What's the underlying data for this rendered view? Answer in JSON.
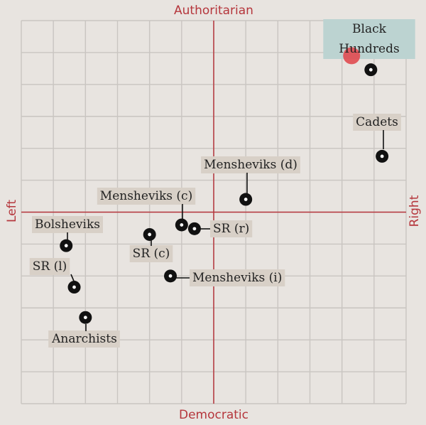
{
  "chart_data": {
    "type": "scatter",
    "title": "",
    "axes": {
      "top": "Authoritarian",
      "bottom": "Democratic",
      "left": "Left",
      "right": "Right"
    },
    "xlim": [
      -6,
      6
    ],
    "ylim": [
      -6,
      6
    ],
    "grid": true,
    "colors": {
      "axis": "#b5363c",
      "grid": "#c9c5c1",
      "label_bg": "#d8d0c7",
      "highlight_bg": "#bcd3d1",
      "highlight_dot": "#e04a50",
      "point": "#111111"
    },
    "points": [
      {
        "label": "Black Hundreds",
        "lines": [
          "Black",
          "Hundreds"
        ],
        "x": 4.9,
        "y": 4.46,
        "highlight": true,
        "ref_x": 4.3,
        "ref_y": 4.9
      },
      {
        "label": "Cadets",
        "x": 5.25,
        "y": 1.75
      },
      {
        "label": "Mensheviks (d)",
        "x": 1.0,
        "y": 0.4
      },
      {
        "label": "Mensheviks (c)",
        "x": -1.0,
        "y": -0.4
      },
      {
        "label": "SR (r)",
        "x": -0.6,
        "y": -0.52
      },
      {
        "label": "SR (c)",
        "x": -2.0,
        "y": -0.7
      },
      {
        "label": "Mensheviks (i)",
        "x": -1.35,
        "y": -2.0
      },
      {
        "label": "Bolsheviks",
        "x": -4.6,
        "y": -1.05
      },
      {
        "label": "SR (l)",
        "x": -4.35,
        "y": -2.35
      },
      {
        "label": "Anarchists",
        "x": -4.0,
        "y": -3.3
      }
    ]
  }
}
